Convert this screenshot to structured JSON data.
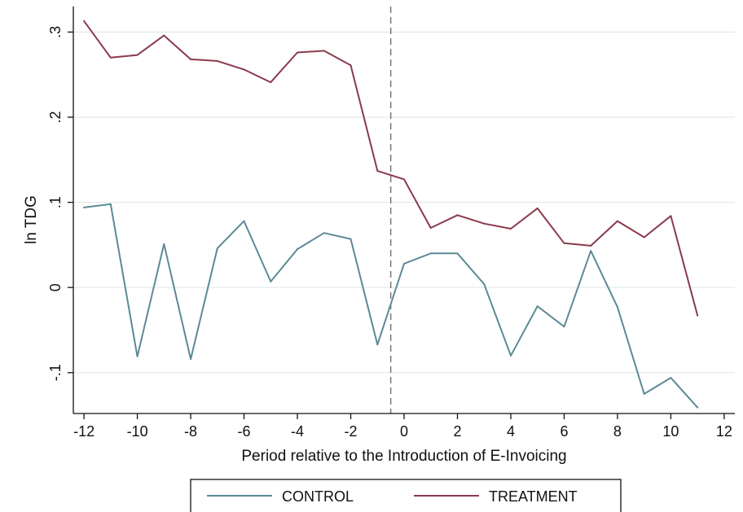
{
  "chart_data": {
    "type": "line",
    "xlabel": "Period relative to the Introduction of E-Invoicing",
    "ylabel": "ln TDG",
    "xlim": [
      -12.4,
      12.4
    ],
    "ylim": [
      -0.148,
      0.33
    ],
    "x_ticks": [
      -12,
      -10,
      -8,
      -6,
      -4,
      -2,
      0,
      2,
      4,
      6,
      8,
      10,
      12
    ],
    "x_tick_labels": [
      "-12",
      "-10",
      "-8",
      "-6",
      "-4",
      "-2",
      "0",
      "2",
      "4",
      "6",
      "8",
      "10",
      "12"
    ],
    "y_ticks": [
      -0.1,
      0,
      0.1,
      0.2,
      0.3
    ],
    "y_tick_labels": [
      "-.1",
      "0",
      ".1",
      ".2",
      ".3"
    ],
    "vertical_reference_line": -0.5,
    "grid": "horizontal",
    "legend_position": "bottom",
    "x": [
      -12,
      -11,
      -10,
      -9,
      -8,
      -7,
      -6,
      -5,
      -4,
      -3,
      -2,
      -1,
      0,
      1,
      2,
      3,
      4,
      5,
      6,
      7,
      8,
      9,
      10,
      11
    ],
    "series": [
      {
        "name": "CONTROL",
        "color": "#5c8a96",
        "values": [
          0.094,
          0.098,
          -0.081,
          0.051,
          -0.084,
          0.046,
          0.078,
          0.007,
          0.045,
          0.064,
          0.057,
          -0.067,
          0.028,
          0.04,
          0.04,
          0.004,
          -0.08,
          -0.022,
          -0.046,
          0.043,
          -0.023,
          -0.125,
          -0.106,
          -0.141
        ]
      },
      {
        "name": "TREATMENT",
        "color": "#8a3a4c",
        "values": [
          0.313,
          0.27,
          0.273,
          0.296,
          0.268,
          0.266,
          0.256,
          0.241,
          0.276,
          0.278,
          0.261,
          0.137,
          0.127,
          0.07,
          0.085,
          0.075,
          0.069,
          0.093,
          0.052,
          0.049,
          0.078,
          0.059,
          0.084,
          -0.033
        ]
      }
    ]
  },
  "colors": {
    "frame": "#111111",
    "grid": "#e3e8ec",
    "reference_line": "#777777"
  }
}
